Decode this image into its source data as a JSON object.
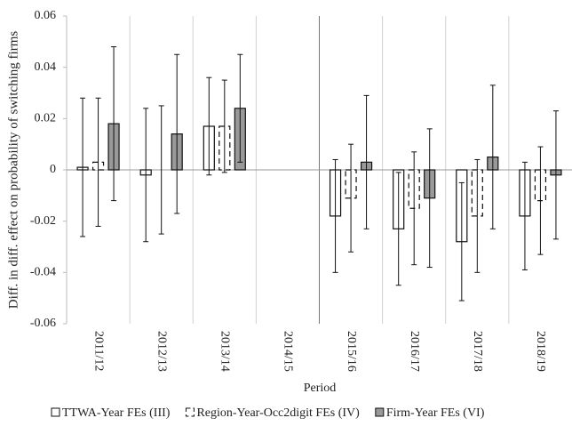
{
  "chart_data": {
    "type": "bar",
    "y_label": "Diff. in diff. effect on probability of switching firms",
    "x_label": "Period",
    "categories": [
      "2011/12",
      "2012/13",
      "2013/14",
      "2014/15",
      "2015/16",
      "2016/17",
      "2017/18",
      "2018/19"
    ],
    "series": [
      {
        "name": "TTWA-Year FEs (III)",
        "color": "#ffffff",
        "line_style": "solid",
        "values": [
          0.001,
          -0.002,
          0.017,
          0,
          -0.018,
          -0.023,
          -0.028,
          -0.018
        ],
        "errors": [
          0.027,
          0.026,
          0.019,
          0,
          0.022,
          0.022,
          0.023,
          0.021
        ]
      },
      {
        "name": "Region-Year-Occ2digit FEs (IV)",
        "color": "#ffffff",
        "line_style": "dashed",
        "values": [
          0.003,
          0.0,
          0.017,
          0,
          -0.011,
          -0.015,
          -0.018,
          -0.012
        ],
        "errors": [
          0.025,
          0.025,
          0.018,
          0,
          0.021,
          0.022,
          0.022,
          0.021
        ]
      },
      {
        "name": "Firm-Year FEs (VI)",
        "color": "#999999",
        "line_style": "solid",
        "values": [
          0.018,
          0.014,
          0.024,
          0,
          0.003,
          -0.011,
          0.005,
          -0.002
        ],
        "errors": [
          0.03,
          0.031,
          0.021,
          0,
          0.026,
          0.027,
          0.028,
          0.025
        ]
      }
    ],
    "ylim": [
      -0.06,
      0.06
    ],
    "yticks": [
      0.06,
      0.04,
      0.02,
      0,
      -0.02,
      -0.04,
      -0.06
    ]
  }
}
